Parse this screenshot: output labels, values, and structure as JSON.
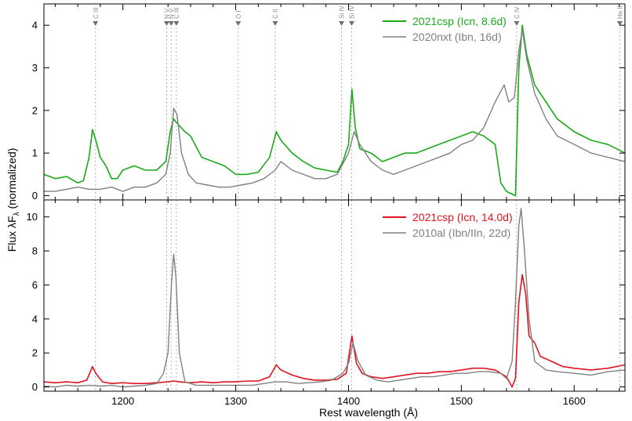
{
  "chart_data": [
    {
      "type": "line",
      "xlim": [
        1130,
        1645
      ],
      "ylim": [
        -0.1,
        4.5
      ],
      "yticks": [
        0,
        1,
        2,
        3,
        4
      ],
      "grid": false,
      "legend_position": "top-right",
      "series": [
        {
          "name": "2021csp (Icn, 8.6d)",
          "color": "#1aaa1a",
          "points": [
            [
              1130,
              0.5
            ],
            [
              1140,
              0.4
            ],
            [
              1150,
              0.45
            ],
            [
              1160,
              0.3
            ],
            [
              1165,
              0.35
            ],
            [
              1170,
              0.9
            ],
            [
              1173,
              1.55
            ],
            [
              1176,
              1.3
            ],
            [
              1180,
              0.9
            ],
            [
              1185,
              0.7
            ],
            [
              1190,
              0.4
            ],
            [
              1195,
              0.4
            ],
            [
              1200,
              0.6
            ],
            [
              1210,
              0.7
            ],
            [
              1220,
              0.6
            ],
            [
              1230,
              0.6
            ],
            [
              1238,
              0.8
            ],
            [
              1242,
              1.5
            ],
            [
              1245,
              1.8
            ],
            [
              1248,
              1.7
            ],
            [
              1255,
              1.5
            ],
            [
              1260,
              1.4
            ],
            [
              1270,
              0.9
            ],
            [
              1280,
              0.8
            ],
            [
              1290,
              0.7
            ],
            [
              1300,
              0.5
            ],
            [
              1310,
              0.5
            ],
            [
              1320,
              0.55
            ],
            [
              1330,
              0.9
            ],
            [
              1336,
              1.5
            ],
            [
              1340,
              1.3
            ],
            [
              1350,
              1.0
            ],
            [
              1360,
              0.8
            ],
            [
              1370,
              0.65
            ],
            [
              1380,
              0.6
            ],
            [
              1390,
              0.55
            ],
            [
              1395,
              0.8
            ],
            [
              1400,
              1.2
            ],
            [
              1403,
              2.5
            ],
            [
              1406,
              1.6
            ],
            [
              1410,
              1.1
            ],
            [
              1420,
              1.0
            ],
            [
              1430,
              0.8
            ],
            [
              1440,
              0.9
            ],
            [
              1450,
              1.0
            ],
            [
              1460,
              1.0
            ],
            [
              1470,
              1.1
            ],
            [
              1480,
              1.2
            ],
            [
              1490,
              1.3
            ],
            [
              1500,
              1.4
            ],
            [
              1510,
              1.5
            ],
            [
              1520,
              1.4
            ],
            [
              1530,
              1.2
            ],
            [
              1535,
              0.3
            ],
            [
              1540,
              0.1
            ],
            [
              1548,
              0.0
            ],
            [
              1551,
              3.0
            ],
            [
              1554,
              4.0
            ],
            [
              1558,
              3.3
            ],
            [
              1565,
              2.6
            ],
            [
              1575,
              2.2
            ],
            [
              1585,
              1.8
            ],
            [
              1600,
              1.5
            ],
            [
              1615,
              1.3
            ],
            [
              1630,
              1.2
            ],
            [
              1645,
              1.0
            ]
          ]
        },
        {
          "name": "2020nxt (Ibn, 16d)",
          "color": "#808080",
          "points": [
            [
              1130,
              0.1
            ],
            [
              1140,
              0.1
            ],
            [
              1150,
              0.15
            ],
            [
              1160,
              0.2
            ],
            [
              1170,
              0.15
            ],
            [
              1180,
              0.15
            ],
            [
              1190,
              0.2
            ],
            [
              1200,
              0.1
            ],
            [
              1210,
              0.2
            ],
            [
              1220,
              0.2
            ],
            [
              1230,
              0.3
            ],
            [
              1238,
              0.5
            ],
            [
              1242,
              1.0
            ],
            [
              1245,
              2.05
            ],
            [
              1248,
              1.9
            ],
            [
              1252,
              1.0
            ],
            [
              1258,
              0.5
            ],
            [
              1265,
              0.3
            ],
            [
              1275,
              0.25
            ],
            [
              1285,
              0.2
            ],
            [
              1295,
              0.2
            ],
            [
              1305,
              0.25
            ],
            [
              1315,
              0.3
            ],
            [
              1325,
              0.4
            ],
            [
              1335,
              0.6
            ],
            [
              1340,
              0.8
            ],
            [
              1350,
              0.6
            ],
            [
              1360,
              0.5
            ],
            [
              1370,
              0.4
            ],
            [
              1380,
              0.4
            ],
            [
              1390,
              0.5
            ],
            [
              1400,
              1.0
            ],
            [
              1405,
              1.5
            ],
            [
              1410,
              1.2
            ],
            [
              1420,
              0.8
            ],
            [
              1430,
              0.6
            ],
            [
              1440,
              0.5
            ],
            [
              1450,
              0.6
            ],
            [
              1460,
              0.7
            ],
            [
              1470,
              0.8
            ],
            [
              1480,
              0.9
            ],
            [
              1490,
              1.0
            ],
            [
              1500,
              1.2
            ],
            [
              1510,
              1.3
            ],
            [
              1520,
              1.6
            ],
            [
              1530,
              2.2
            ],
            [
              1538,
              2.6
            ],
            [
              1542,
              2.2
            ],
            [
              1547,
              2.3
            ],
            [
              1551,
              3.4
            ],
            [
              1554,
              3.9
            ],
            [
              1558,
              3.2
            ],
            [
              1565,
              2.4
            ],
            [
              1575,
              1.8
            ],
            [
              1585,
              1.4
            ],
            [
              1600,
              1.2
            ],
            [
              1615,
              1.0
            ],
            [
              1630,
              0.9
            ],
            [
              1645,
              0.8
            ]
          ]
        }
      ]
    },
    {
      "type": "line",
      "xlim": [
        1130,
        1645
      ],
      "ylim": [
        -0.25,
        11.0
      ],
      "xticks": [
        1200,
        1300,
        1400,
        1500,
        1600
      ],
      "yticks": [
        0,
        2,
        4,
        6,
        8,
        10
      ],
      "xlabel": "Rest wavelength (Å)",
      "grid": false,
      "legend_position": "top-right",
      "series": [
        {
          "name": "2021csp (Icn, 14.0d)",
          "color": "#e0141e",
          "points": [
            [
              1130,
              0.3
            ],
            [
              1140,
              0.25
            ],
            [
              1150,
              0.3
            ],
            [
              1160,
              0.25
            ],
            [
              1168,
              0.4
            ],
            [
              1173,
              1.2
            ],
            [
              1176,
              0.8
            ],
            [
              1182,
              0.3
            ],
            [
              1190,
              0.2
            ],
            [
              1200,
              0.25
            ],
            [
              1210,
              0.2
            ],
            [
              1220,
              0.2
            ],
            [
              1230,
              0.25
            ],
            [
              1240,
              0.3
            ],
            [
              1245,
              0.35
            ],
            [
              1250,
              0.3
            ],
            [
              1260,
              0.25
            ],
            [
              1270,
              0.3
            ],
            [
              1280,
              0.25
            ],
            [
              1290,
              0.3
            ],
            [
              1300,
              0.3
            ],
            [
              1310,
              0.35
            ],
            [
              1320,
              0.35
            ],
            [
              1330,
              0.6
            ],
            [
              1336,
              1.3
            ],
            [
              1340,
              1.0
            ],
            [
              1350,
              0.7
            ],
            [
              1360,
              0.5
            ],
            [
              1370,
              0.4
            ],
            [
              1380,
              0.4
            ],
            [
              1390,
              0.45
            ],
            [
              1398,
              0.8
            ],
            [
              1403,
              3.0
            ],
            [
              1407,
              1.4
            ],
            [
              1412,
              0.8
            ],
            [
              1420,
              0.6
            ],
            [
              1430,
              0.5
            ],
            [
              1440,
              0.6
            ],
            [
              1450,
              0.7
            ],
            [
              1460,
              0.8
            ],
            [
              1470,
              0.8
            ],
            [
              1480,
              0.9
            ],
            [
              1490,
              0.9
            ],
            [
              1500,
              1.0
            ],
            [
              1510,
              1.1
            ],
            [
              1520,
              1.1
            ],
            [
              1530,
              1.0
            ],
            [
              1540,
              0.6
            ],
            [
              1545,
              0.0
            ],
            [
              1548,
              0.5
            ],
            [
              1551,
              5.0
            ],
            [
              1554,
              6.6
            ],
            [
              1557,
              5.5
            ],
            [
              1560,
              3.0
            ],
            [
              1565,
              2.6
            ],
            [
              1570,
              1.8
            ],
            [
              1580,
              1.5
            ],
            [
              1590,
              1.2
            ],
            [
              1600,
              1.1
            ],
            [
              1615,
              1.0
            ],
            [
              1630,
              1.1
            ],
            [
              1645,
              1.3
            ]
          ]
        },
        {
          "name": "2010al (Ibn/IIn, 22d)",
          "color": "#808080",
          "points": [
            [
              1130,
              0.05
            ],
            [
              1140,
              0.0
            ],
            [
              1150,
              0.1
            ],
            [
              1160,
              0.05
            ],
            [
              1170,
              0.1
            ],
            [
              1180,
              0.05
            ],
            [
              1190,
              0.1
            ],
            [
              1200,
              0.0
            ],
            [
              1210,
              0.05
            ],
            [
              1220,
              0.1
            ],
            [
              1230,
              0.2
            ],
            [
              1236,
              0.8
            ],
            [
              1240,
              2.0
            ],
            [
              1243,
              6.0
            ],
            [
              1245,
              7.8
            ],
            [
              1247,
              6.5
            ],
            [
              1250,
              2.0
            ],
            [
              1255,
              0.3
            ],
            [
              1265,
              0.1
            ],
            [
              1275,
              0.1
            ],
            [
              1285,
              0.1
            ],
            [
              1295,
              0.1
            ],
            [
              1305,
              0.1
            ],
            [
              1315,
              0.1
            ],
            [
              1325,
              0.2
            ],
            [
              1335,
              0.3
            ],
            [
              1345,
              0.3
            ],
            [
              1355,
              0.2
            ],
            [
              1365,
              0.25
            ],
            [
              1375,
              0.3
            ],
            [
              1385,
              0.4
            ],
            [
              1395,
              0.8
            ],
            [
              1400,
              1.4
            ],
            [
              1404,
              2.6
            ],
            [
              1408,
              1.6
            ],
            [
              1415,
              0.7
            ],
            [
              1425,
              0.4
            ],
            [
              1435,
              0.3
            ],
            [
              1445,
              0.4
            ],
            [
              1455,
              0.5
            ],
            [
              1465,
              0.6
            ],
            [
              1475,
              0.6
            ],
            [
              1485,
              0.7
            ],
            [
              1495,
              0.8
            ],
            [
              1505,
              0.8
            ],
            [
              1515,
              0.9
            ],
            [
              1525,
              0.9
            ],
            [
              1535,
              0.8
            ],
            [
              1540,
              0.5
            ],
            [
              1545,
              1.5
            ],
            [
              1548,
              5.0
            ],
            [
              1551,
              9.5
            ],
            [
              1553,
              10.5
            ],
            [
              1556,
              8.0
            ],
            [
              1560,
              4.0
            ],
            [
              1565,
              1.5
            ],
            [
              1575,
              1.0
            ],
            [
              1585,
              0.9
            ],
            [
              1600,
              0.8
            ],
            [
              1615,
              0.7
            ],
            [
              1630,
              0.9
            ],
            [
              1645,
              1.0
            ]
          ]
        }
      ]
    }
  ],
  "ylabel": "Flux λF",
  "ylabel_sub": "λ",
  "ylabel_suffix": " (normalized)",
  "line_ids": [
    {
      "label": "C III",
      "x": 1175.7
    },
    {
      "label": "N V",
      "x": 1238.8
    },
    {
      "label": "N V",
      "x": 1242.8
    },
    {
      "label": "C III",
      "x": 1247.4
    },
    {
      "label": "O I",
      "x": 1302.2
    },
    {
      "label": "C II",
      "x": 1335.0
    },
    {
      "label": "Si IV",
      "x": 1393.8
    },
    {
      "label": "Si IV",
      "x": 1402.8
    },
    {
      "label": "C IV",
      "x": 1549.0
    },
    {
      "label": "He II",
      "x": 1640.4
    }
  ]
}
